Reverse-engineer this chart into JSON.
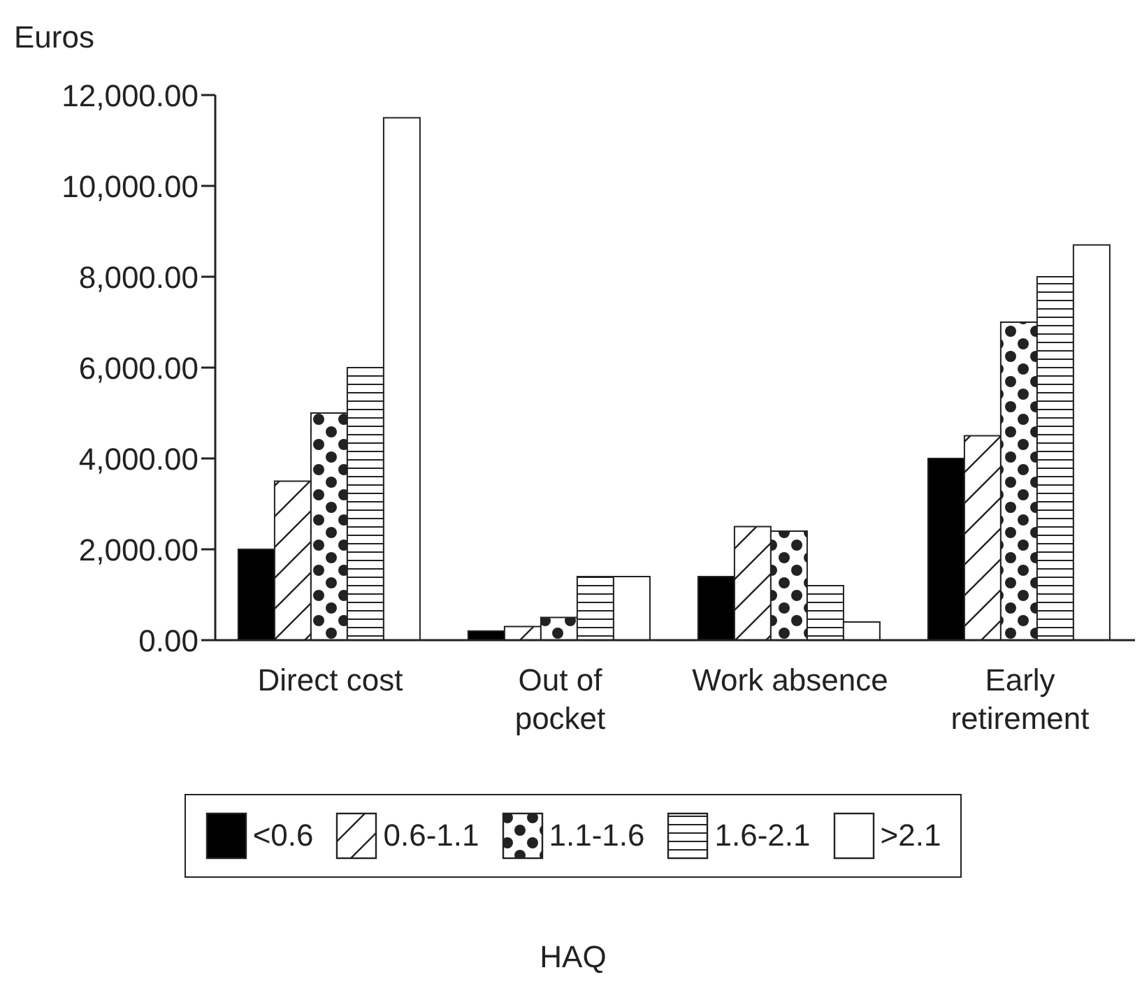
{
  "chart_data": {
    "type": "bar",
    "ylabel": "Euros",
    "legend_title": "HAQ",
    "categories": [
      "Direct cost",
      "Out of pocket",
      "Work absence",
      "Early retirement"
    ],
    "series": [
      {
        "name": "<0.6",
        "color": "#000000",
        "values": [
          2000,
          200,
          1400,
          4000
        ]
      },
      {
        "name": "0.6-1.1",
        "color": "#222222",
        "values": [
          3500,
          300,
          2500,
          4500
        ]
      },
      {
        "name": "1.1-1.6",
        "color": "#222222",
        "values": [
          5000,
          500,
          2400,
          7000
        ]
      },
      {
        "name": "1.6-2.1",
        "color": "#222222",
        "values": [
          6000,
          1400,
          1200,
          8000
        ]
      },
      {
        "name": ">2.1",
        "color": "#ffffff",
        "values": [
          11500,
          1400,
          400,
          8700
        ]
      }
    ],
    "ylim": [
      0,
      12000
    ],
    "yticks": [
      {
        "value": 0,
        "label": "0.00"
      },
      {
        "value": 2000,
        "label": "2,000.00"
      },
      {
        "value": 4000,
        "label": "4,000.00"
      },
      {
        "value": 6000,
        "label": "6,000.00"
      },
      {
        "value": 8000,
        "label": "8,000.00"
      },
      {
        "value": 10000,
        "label": "10,000.00"
      },
      {
        "value": 12000,
        "label": "12,000.00"
      }
    ],
    "grid": false,
    "legend": "bottom"
  }
}
